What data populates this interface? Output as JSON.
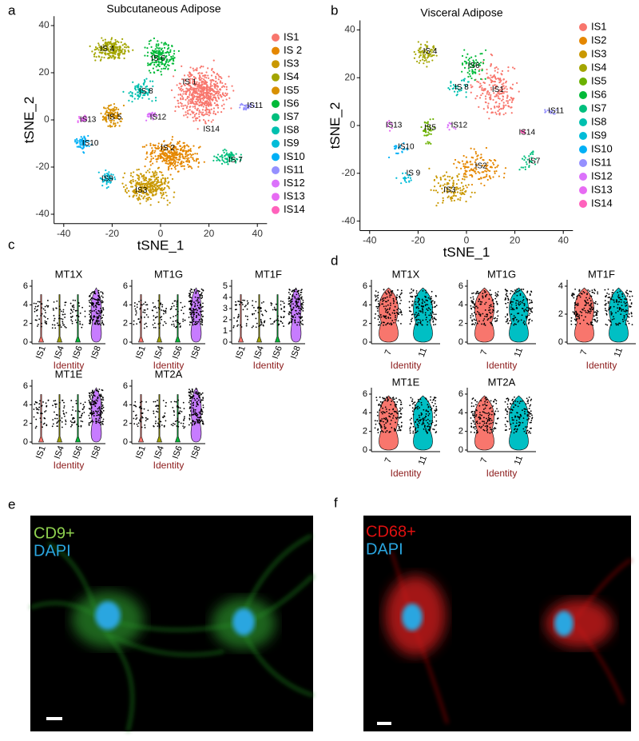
{
  "panels": {
    "a": {
      "letter": "a",
      "title": "Subcutaneous Adipose",
      "x_label": "tSNE_1",
      "y_label": "tSNE_2",
      "xticks": [
        -40,
        -20,
        0,
        20,
        40
      ],
      "yticks": [
        40,
        20,
        0,
        -20,
        -40
      ],
      "cluster_labels": [
        "IS 1",
        "IS 2",
        "IS3",
        "IS 4",
        "IS 5",
        "IS 6",
        "IS 7",
        "IS 8",
        "IS9",
        "IS10",
        "IS11",
        "IS12",
        "IS13",
        "IS14"
      ],
      "legend": [
        {
          "name": "IS1",
          "color": "#F8766D"
        },
        {
          "name": "IS 2",
          "color": "#E58700"
        },
        {
          "name": "IS3",
          "color": "#C99800"
        },
        {
          "name": "IS4",
          "color": "#A3A500"
        },
        {
          "name": "IS5",
          "color": "#D89000"
        },
        {
          "name": "IS6",
          "color": "#00BA38"
        },
        {
          "name": "IS7",
          "color": "#00BF7D"
        },
        {
          "name": "IS8",
          "color": "#00C0AF"
        },
        {
          "name": "IS9",
          "color": "#00BCD8"
        },
        {
          "name": "IS10",
          "color": "#00B0F6"
        },
        {
          "name": "IS11",
          "color": "#9590FF"
        },
        {
          "name": "IS12",
          "color": "#DB72FB"
        },
        {
          "name": "IS13",
          "color": "#E76BF3"
        },
        {
          "name": "IS14",
          "color": "#FF62BC"
        }
      ]
    },
    "b": {
      "letter": "b",
      "title": "Visceral Adipose",
      "x_label": "tSNE_1",
      "y_label": "tSNE_2",
      "xticks": [
        -40,
        -20,
        0,
        20,
        40
      ],
      "yticks": [
        40,
        20,
        0,
        -20,
        -40
      ],
      "cluster_labels": [
        "IS1",
        "IS2",
        "IS3",
        "IS 4",
        "IS5",
        "IS6",
        "IS7",
        "IS 8",
        "IS 9",
        "IS10",
        "IS11",
        "IS12",
        "IS13",
        "IS14"
      ],
      "legend": [
        {
          "name": "IS1",
          "color": "#F8766D"
        },
        {
          "name": "IS2",
          "color": "#E58700"
        },
        {
          "name": "IS3",
          "color": "#C99800"
        },
        {
          "name": "IS4",
          "color": "#A3A500"
        },
        {
          "name": "IS5",
          "color": "#6BB100"
        },
        {
          "name": "IS6",
          "color": "#00BA38"
        },
        {
          "name": "IS7",
          "color": "#00BF7D"
        },
        {
          "name": "IS8",
          "color": "#00C0AF"
        },
        {
          "name": "IS9",
          "color": "#00BCD8"
        },
        {
          "name": "IS10",
          "color": "#00B0F6"
        },
        {
          "name": "IS11",
          "color": "#9590FF"
        },
        {
          "name": "IS12",
          "color": "#DB72FB"
        },
        {
          "name": "IS13",
          "color": "#E76BF3"
        },
        {
          "name": "IS14",
          "color": "#FF62BC"
        }
      ]
    },
    "c": {
      "letter": "c",
      "plots": [
        {
          "gene": "MT1X",
          "yticks": [
            6,
            4,
            2,
            0
          ],
          "groups": [
            "IS1",
            "IS4",
            "IS6",
            "IS8"
          ],
          "x_label": "Identity"
        },
        {
          "gene": "MT1G",
          "yticks": [
            6,
            4,
            2,
            0
          ],
          "groups": [
            "IS1",
            "IS4",
            "IS6",
            "IS8"
          ],
          "x_label": "Identity"
        },
        {
          "gene": "MT1F",
          "yticks": [
            5,
            4,
            3,
            2,
            1,
            0
          ],
          "groups": [
            "IS1",
            "IS4",
            "IS6",
            "IS8"
          ],
          "x_label": "Identity"
        },
        {
          "gene": "MT1E",
          "yticks": [
            6,
            4,
            2,
            0
          ],
          "groups": [
            "IS1",
            "IS4",
            "IS6",
            "IS8"
          ],
          "x_label": "Identity"
        },
        {
          "gene": "MT2A",
          "yticks": [
            6,
            4,
            2,
            0
          ],
          "groups": [
            "IS1",
            "IS4",
            "IS6",
            "IS8"
          ],
          "x_label": "Identity"
        }
      ]
    },
    "d": {
      "letter": "d",
      "plots": [
        {
          "gene": "MT1X",
          "yticks": [
            6,
            4,
            2,
            0
          ],
          "groups": [
            "7",
            "11"
          ],
          "x_label": "Identity"
        },
        {
          "gene": "MT1G",
          "yticks": [
            6,
            4,
            2,
            0
          ],
          "groups": [
            "7",
            "11"
          ],
          "x_label": "Identity"
        },
        {
          "gene": "MT1F",
          "yticks": [
            4,
            2,
            0
          ],
          "groups": [
            "7",
            "11"
          ],
          "x_label": "Identity"
        },
        {
          "gene": "MT1E",
          "yticks": [
            6,
            4,
            2,
            0
          ],
          "groups": [
            "7",
            "11"
          ],
          "x_label": "Identity"
        },
        {
          "gene": "MT2A",
          "yticks": [
            6,
            4,
            2,
            0
          ],
          "groups": [
            "7",
            "11"
          ],
          "x_label": "Identity"
        }
      ]
    },
    "e": {
      "letter": "e",
      "stains": [
        "CD9+",
        "DAPI"
      ]
    },
    "f": {
      "letter": "f",
      "stains": [
        "CD68+",
        "DAPI"
      ]
    }
  }
}
